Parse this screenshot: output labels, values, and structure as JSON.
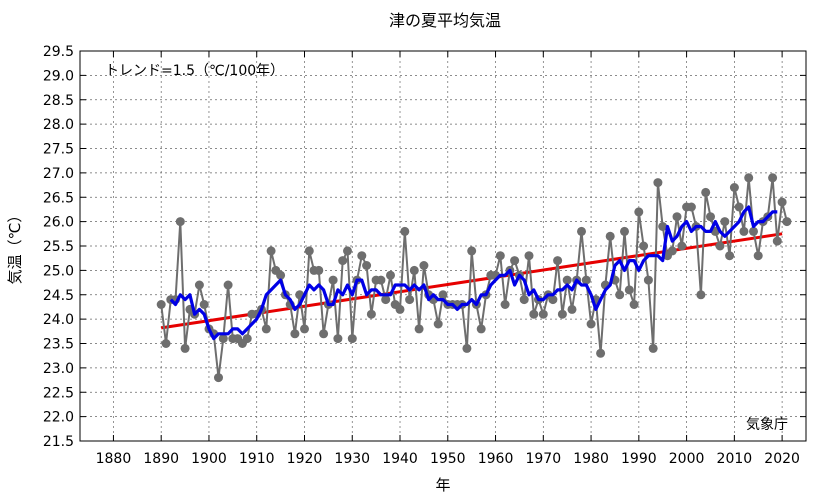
{
  "chart_data": {
    "type": "line",
    "title": "津の夏平均気温",
    "xlabel": "年",
    "ylabel": "気温（℃）",
    "trend_label": "トレンド=1.5（℃/100年）",
    "source_label": "気象庁",
    "xlim": [
      1873,
      2025
    ],
    "ylim": [
      21.5,
      29.5
    ],
    "x_ticks": [
      1880,
      1890,
      1900,
      1910,
      1920,
      1930,
      1940,
      1950,
      1960,
      1970,
      1980,
      1990,
      2000,
      2010,
      2020
    ],
    "y_ticks": [
      21.5,
      22.0,
      22.5,
      23.0,
      23.5,
      24.0,
      24.5,
      25.0,
      25.5,
      26.0,
      26.5,
      27.0,
      27.5,
      28.0,
      28.5,
      29.0,
      29.5
    ],
    "y_tick_labels": [
      "21.5",
      "22.0",
      "22.5",
      "23.0",
      "23.5",
      "24.0",
      "24.5",
      "25.0",
      "25.5",
      "26.0",
      "26.5",
      "27.0",
      "27.5",
      "28.0",
      "28.5",
      "29.0",
      "29.5"
    ],
    "grid": true,
    "series": [
      {
        "role": "annual",
        "color": "#6e6e6e",
        "x": [
          1890,
          1891,
          1892,
          1893,
          1894,
          1895,
          1896,
          1897,
          1898,
          1899,
          1900,
          1901,
          1902,
          1903,
          1904,
          1905,
          1906,
          1907,
          1908,
          1909,
          1910,
          1911,
          1912,
          1913,
          1914,
          1915,
          1916,
          1917,
          1918,
          1919,
          1920,
          1921,
          1922,
          1923,
          1924,
          1925,
          1926,
          1927,
          1928,
          1929,
          1930,
          1931,
          1932,
          1933,
          1934,
          1935,
          1936,
          1937,
          1938,
          1939,
          1940,
          1941,
          1942,
          1943,
          1944,
          1945,
          1946,
          1947,
          1948,
          1949,
          1950,
          1951,
          1952,
          1953,
          1954,
          1955,
          1956,
          1957,
          1958,
          1959,
          1960,
          1961,
          1962,
          1963,
          1964,
          1965,
          1966,
          1967,
          1968,
          1969,
          1970,
          1971,
          1972,
          1973,
          1974,
          1975,
          1976,
          1977,
          1978,
          1979,
          1980,
          1981,
          1982,
          1983,
          1984,
          1985,
          1986,
          1987,
          1988,
          1989,
          1990,
          1991,
          1992,
          1993,
          1994,
          1995,
          1996,
          1997,
          1998,
          1999,
          2000,
          2001,
          2002,
          2003,
          2004,
          2005,
          2006,
          2007,
          2008,
          2009,
          2010,
          2011,
          2012,
          2013,
          2014,
          2015,
          2016,
          2017,
          2018,
          2019,
          2020,
          2021
        ],
        "y": [
          24.3,
          23.5,
          24.4,
          24.4,
          26.0,
          23.4,
          24.2,
          24.1,
          24.7,
          24.3,
          23.8,
          23.7,
          22.8,
          23.6,
          24.7,
          23.6,
          23.6,
          23.5,
          23.6,
          24.1,
          24.1,
          24.2,
          23.8,
          25.4,
          25.0,
          24.9,
          24.5,
          24.3,
          23.7,
          24.5,
          23.8,
          25.4,
          25.0,
          25.0,
          23.7,
          24.3,
          24.8,
          23.6,
          25.2,
          25.4,
          23.6,
          24.8,
          25.3,
          25.1,
          24.1,
          24.8,
          24.8,
          24.4,
          24.9,
          24.3,
          24.2,
          25.8,
          24.4,
          25.0,
          23.8,
          25.1,
          24.5,
          24.4,
          23.9,
          24.5,
          24.3,
          24.3,
          24.3,
          24.3,
          23.4,
          25.4,
          24.3,
          23.8,
          24.5,
          24.9,
          24.9,
          25.3,
          24.3,
          25.0,
          25.2,
          24.9,
          24.4,
          25.3,
          24.1,
          24.4,
          24.1,
          24.5,
          24.4,
          25.2,
          24.1,
          24.8,
          24.2,
          24.8,
          25.8,
          24.8,
          23.9,
          24.4,
          23.3,
          24.7,
          25.7,
          24.8,
          24.5,
          25.8,
          24.6,
          24.3,
          26.2,
          25.5,
          24.8,
          23.4,
          26.8,
          25.9,
          25.3,
          25.4,
          26.1,
          25.5,
          26.3,
          26.3,
          25.9,
          24.5,
          26.6,
          26.1,
          25.8,
          25.5,
          26.0,
          25.3,
          26.7,
          26.3,
          25.8,
          26.9,
          25.8,
          25.3,
          26.0,
          26.1,
          26.9,
          25.6,
          26.4,
          26.0
        ]
      },
      {
        "role": "5-year running mean",
        "color": "#0000e6",
        "x": [
          1892,
          1893,
          1894,
          1895,
          1896,
          1897,
          1898,
          1899,
          1900,
          1901,
          1902,
          1903,
          1904,
          1905,
          1906,
          1907,
          1908,
          1909,
          1910,
          1911,
          1912,
          1913,
          1914,
          1915,
          1916,
          1917,
          1918,
          1919,
          1920,
          1921,
          1922,
          1923,
          1924,
          1925,
          1926,
          1927,
          1928,
          1929,
          1930,
          1931,
          1932,
          1933,
          1934,
          1935,
          1936,
          1937,
          1938,
          1939,
          1940,
          1941,
          1942,
          1943,
          1944,
          1945,
          1946,
          1947,
          1948,
          1949,
          1950,
          1951,
          1952,
          1953,
          1954,
          1955,
          1956,
          1957,
          1958,
          1959,
          1960,
          1961,
          1962,
          1963,
          1964,
          1965,
          1966,
          1967,
          1968,
          1969,
          1970,
          1971,
          1972,
          1973,
          1974,
          1975,
          1976,
          1977,
          1978,
          1979,
          1980,
          1981,
          1982,
          1983,
          1984,
          1985,
          1986,
          1987,
          1988,
          1989,
          1990,
          1991,
          1992,
          1993,
          1994,
          1995,
          1996,
          1997,
          1998,
          1999,
          2000,
          2001,
          2002,
          2003,
          2004,
          2005,
          2006,
          2007,
          2008,
          2009,
          2010,
          2011,
          2012,
          2013,
          2014,
          2015,
          2016,
          2017,
          2018,
          2019
        ],
        "y": [
          24.4,
          24.3,
          24.5,
          24.4,
          24.5,
          24.1,
          24.2,
          24.1,
          23.8,
          23.6,
          23.7,
          23.7,
          23.7,
          23.8,
          23.8,
          23.7,
          23.8,
          23.9,
          24.0,
          24.2,
          24.5,
          24.6,
          24.7,
          24.8,
          24.5,
          24.4,
          24.2,
          24.3,
          24.5,
          24.7,
          24.6,
          24.7,
          24.6,
          24.3,
          24.3,
          24.6,
          24.5,
          24.7,
          24.5,
          24.8,
          24.8,
          24.5,
          24.6,
          24.6,
          24.5,
          24.5,
          24.5,
          24.7,
          24.7,
          24.7,
          24.6,
          24.7,
          24.6,
          24.7,
          24.4,
          24.5,
          24.4,
          24.4,
          24.3,
          24.3,
          24.2,
          24.3,
          24.3,
          24.4,
          24.3,
          24.5,
          24.5,
          24.7,
          24.8,
          24.9,
          24.9,
          25.0,
          24.7,
          24.9,
          24.8,
          24.5,
          24.6,
          24.4,
          24.4,
          24.5,
          24.5,
          24.6,
          24.6,
          24.7,
          24.6,
          24.8,
          24.7,
          24.7,
          24.5,
          24.2,
          24.4,
          24.6,
          24.7,
          25.1,
          25.2,
          25.0,
          25.2,
          25.2,
          25.0,
          25.2,
          25.3,
          25.3,
          25.3,
          25.2,
          25.9,
          25.6,
          25.7,
          25.9,
          26.0,
          25.8,
          25.9,
          25.9,
          25.8,
          25.8,
          26.0,
          25.8,
          25.7,
          25.8,
          25.9,
          26.0,
          26.2,
          26.3,
          25.9,
          26.0,
          26.0,
          26.1,
          26.2,
          26.2
        ]
      },
      {
        "role": "trend",
        "color": "#e60000",
        "x": [
          1890,
          2020
        ],
        "y": [
          23.82,
          25.75
        ]
      }
    ]
  }
}
